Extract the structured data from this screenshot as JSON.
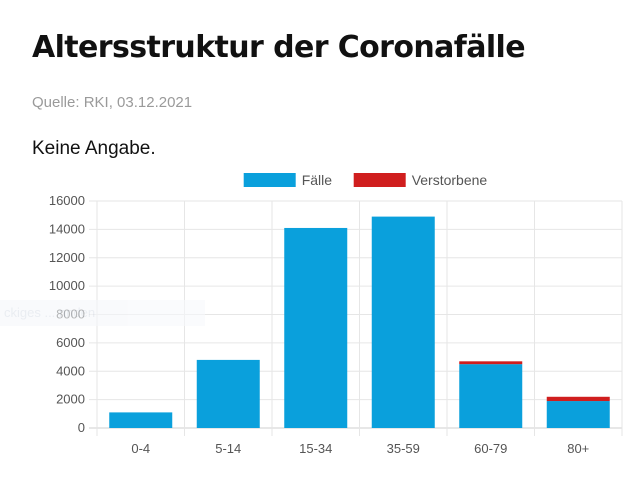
{
  "header": {
    "title": "Altersstruktur der Coronafälle",
    "source": "Quelle: RKI, 03.12.2021",
    "subtitle": "Keine Angabe."
  },
  "watermark": {
    "text": "ckiges ... nnden"
  },
  "chart_data": {
    "type": "bar",
    "stacked": true,
    "categories": [
      "0-4",
      "5-14",
      "15-34",
      "35-59",
      "60-79",
      "80+"
    ],
    "series": [
      {
        "name": "Fälle",
        "color": "#0aa0dc",
        "values": [
          1100,
          4800,
          14100,
          14900,
          4500,
          1900
        ]
      },
      {
        "name": "Verstorbene",
        "color": "#d01e1e",
        "values": [
          0,
          0,
          0,
          0,
          200,
          300
        ]
      }
    ],
    "ylim": [
      0,
      16000
    ],
    "yticks": [
      0,
      2000,
      4000,
      6000,
      8000,
      10000,
      12000,
      14000,
      16000
    ],
    "grid": true,
    "legend_position": "top"
  }
}
